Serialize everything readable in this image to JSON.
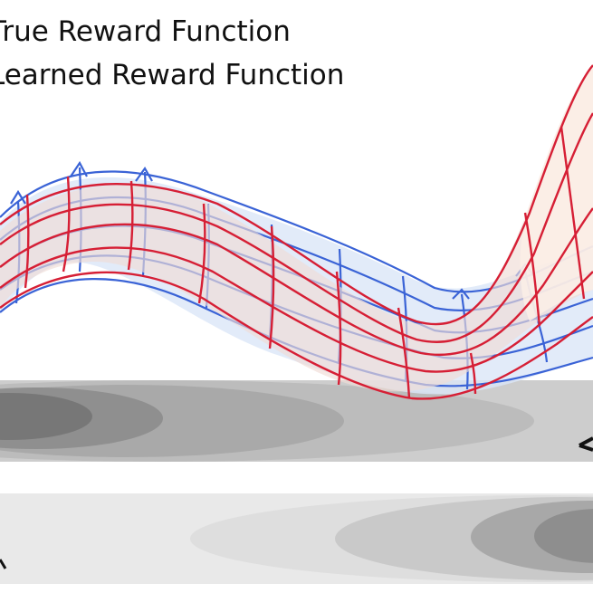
{
  "legend": {
    "items": [
      {
        "label": "True Reward Function",
        "color": "#3a63d6"
      },
      {
        "label": "Learned Reward Function",
        "color": "#d61f35"
      }
    ]
  },
  "colors": {
    "true_wire": "#3a63d6",
    "learned_wire": "#d61f35",
    "surface_fill": "#eadad6",
    "surface_fill_right": "#fbeee6",
    "true_fill": "#dbe6f7",
    "plane_gray": "#c9c9c9",
    "plane_dark": "#7d7d7d"
  }
}
